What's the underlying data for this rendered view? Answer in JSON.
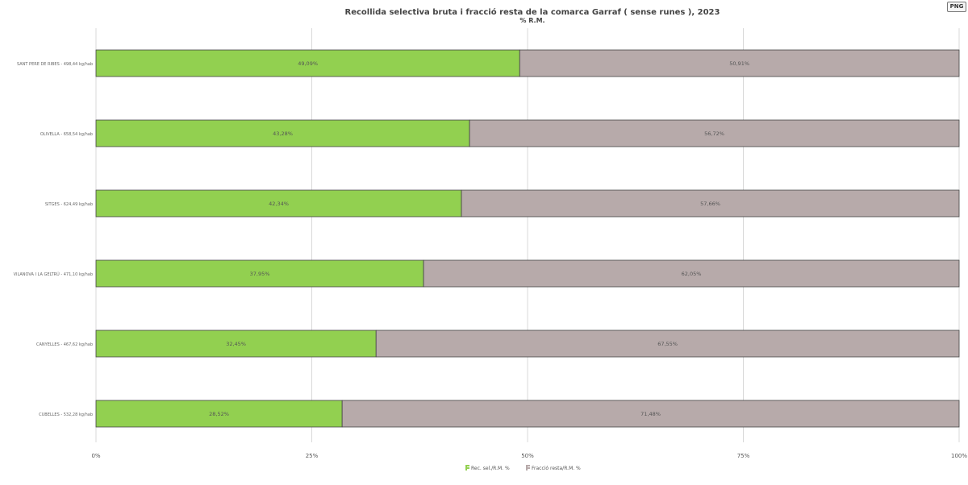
{
  "header": {
    "title": "Recollida selectiva bruta i fracció resta de la comarca Garraf ( sense runes ), 2023",
    "subtitle": "% R.M.",
    "png_button": "PNG"
  },
  "colors": {
    "rec_sel": "#92d050",
    "fraccio_resta": "#b7aaaa",
    "grid": "#d9d9d9",
    "bar_border": "#444444"
  },
  "chart_data": {
    "type": "bar",
    "orientation": "horizontal",
    "stacked": true,
    "categories": [
      "SANT PERE DE RIBES - 498,44 kg/hab",
      "OLIVELLA - 658,54 kg/hab",
      "SITGES - 624,49 kg/hab",
      "VILANOVA I LA GELTRÚ - 471,10 kg/hab",
      "CANYELLES - 467,62 kg/hab",
      "CUBELLES - 532,28 kg/hab"
    ],
    "series": [
      {
        "name": "Rec. sel./R.M. %",
        "values": [
          49.09,
          43.28,
          42.34,
          37.95,
          32.45,
          28.52
        ],
        "labels": [
          "49,09%",
          "43,28%",
          "42,34%",
          "37,95%",
          "32,45%",
          "28,52%"
        ]
      },
      {
        "name": "Fracció resta/R.M. %",
        "values": [
          50.91,
          56.72,
          57.66,
          62.05,
          67.55,
          71.48
        ],
        "labels": [
          "50,91%",
          "56,72%",
          "57,66%",
          "62,05%",
          "67,55%",
          "71,48%"
        ]
      }
    ],
    "xlim": [
      0,
      100
    ],
    "xticks": [
      0,
      25,
      50,
      75,
      100
    ],
    "xtick_labels": [
      "0%",
      "25%",
      "50%",
      "75%",
      "100%"
    ],
    "grid": true,
    "legend_position": "bottom-center"
  }
}
